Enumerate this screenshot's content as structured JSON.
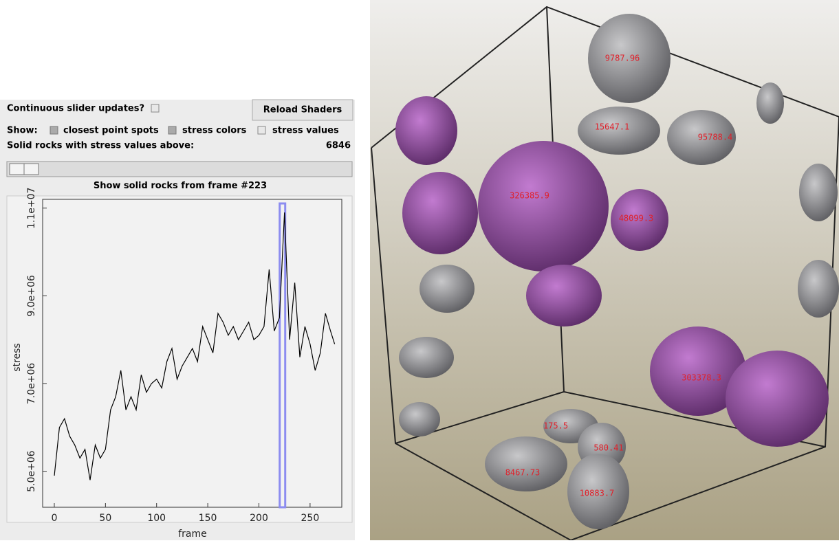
{
  "panel": {
    "continuous_label": "Continuous slider updates?",
    "reload_button": "Reload Shaders",
    "show_label": "Show:",
    "show_options": [
      "closest point spots",
      "stress colors",
      "stress values"
    ],
    "threshold_label": "Solid rocks with stress values above:",
    "threshold_value": 6846,
    "frame_label": "Show solid rocks from frame #",
    "frame_value": 223
  },
  "chart_data": {
    "type": "line",
    "xlabel": "frame",
    "ylabel": "stress",
    "color": "#000000",
    "highlight_color": "#8c8cf0",
    "x": [
      0,
      5,
      10,
      15,
      20,
      25,
      30,
      35,
      40,
      45,
      50,
      55,
      60,
      65,
      70,
      75,
      80,
      85,
      90,
      95,
      100,
      105,
      110,
      115,
      120,
      125,
      130,
      135,
      140,
      145,
      150,
      155,
      160,
      165,
      170,
      175,
      180,
      185,
      190,
      195,
      200,
      205,
      210,
      215,
      220,
      225,
      230,
      235,
      240,
      245,
      250,
      255,
      260,
      265,
      270,
      274
    ],
    "values": [
      4900000,
      6000000,
      6200000,
      5800000,
      5600000,
      5300000,
      5500000,
      4800000,
      5600000,
      5300000,
      5500000,
      6400000,
      6700000,
      7300000,
      6400000,
      6700000,
      6400000,
      7200000,
      6800000,
      7000000,
      7100000,
      6900000,
      7500000,
      7800000,
      7100000,
      7400000,
      7600000,
      7800000,
      7500000,
      8300000,
      8000000,
      7700000,
      8600000,
      8400000,
      8100000,
      8300000,
      8000000,
      8200000,
      8400000,
      8000000,
      8100000,
      8300000,
      9600000,
      8200000,
      8500000,
      10900000,
      8000000,
      9300000,
      7600000,
      8300000,
      7900000,
      7300000,
      7700000,
      8600000,
      8200000,
      7900000
    ],
    "xlim": [
      -11.4,
      281
    ],
    "ylim": [
      4180000,
      11200000
    ],
    "xticks": [
      0,
      50,
      100,
      150,
      200,
      250
    ],
    "yticks": [
      {
        "value": 5000000,
        "label": "5.0e+06"
      },
      {
        "value": 7000000,
        "label": "7.0e+06"
      },
      {
        "value": 9000000,
        "label": "9.0e+06"
      },
      {
        "value": 11000000,
        "label": "1.1e+07"
      }
    ]
  },
  "viewport": {
    "labels": [
      "9787.96",
      "15647.1",
      "95788.4",
      "326385.9",
      "48099.3",
      "303378.3",
      "175.5",
      "580.41",
      "8467.73",
      "10883.7"
    ]
  }
}
